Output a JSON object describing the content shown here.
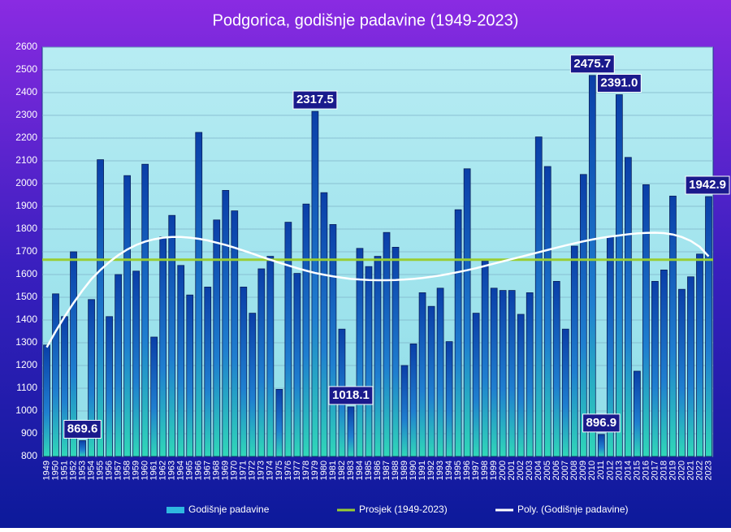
{
  "chart_data": {
    "type": "bar",
    "title": "Podgorica, godišnje padavine (1949-2023)",
    "categories": [
      "1949",
      "1950",
      "1951",
      "1952",
      "1953",
      "1954",
      "1955",
      "1956",
      "1957",
      "1958",
      "1959",
      "1960",
      "1961",
      "1962",
      "1963",
      "1964",
      "1965",
      "1966",
      "1967",
      "1968",
      "1969",
      "1970",
      "1971",
      "1972",
      "1973",
      "1974",
      "1975",
      "1976",
      "1977",
      "1978",
      "1979",
      "1980",
      "1981",
      "1982",
      "1983",
      "1984",
      "1985",
      "1986",
      "1987",
      "1988",
      "1989",
      "1990",
      "1991",
      "1992",
      "1993",
      "1994",
      "1995",
      "1996",
      "1997",
      "1998",
      "1999",
      "2000",
      "2001",
      "2002",
      "2003",
      "2004",
      "2005",
      "2006",
      "2007",
      "2008",
      "2009",
      "2010",
      "2011",
      "2012",
      "2013",
      "2014",
      "2015",
      "2016",
      "2017",
      "2018",
      "2019",
      "2020",
      "2021",
      "2022",
      "2023"
    ],
    "series": [
      {
        "name": "Godišnje padavine",
        "color": "#1f6fd0",
        "values": [
          1290,
          1515,
          1415,
          1700,
          869.6,
          1490,
          2105,
          1415,
          1600,
          2035,
          1615,
          2085,
          1325,
          1765,
          1860,
          1640,
          1510,
          2225,
          1545,
          1840,
          1970,
          1880,
          1545,
          1430,
          1625,
          1680,
          1095,
          1830,
          1605,
          1910,
          2317.5,
          1960,
          1820,
          1360,
          1018.1,
          1715,
          1635,
          1680,
          1785,
          1720,
          1200,
          1295,
          1520,
          1460,
          1540,
          1305,
          1885,
          2065,
          1430,
          1660,
          1540,
          1530,
          1530,
          1425,
          1520,
          2205,
          2075,
          1570,
          1360,
          1725,
          2040,
          2475.7,
          896.9,
          1765,
          2391,
          2115,
          1175,
          1995,
          1570,
          1620,
          1945,
          1535,
          1590,
          1690,
          1942.9
        ],
        "value_labels": [
          null,
          null,
          null,
          null,
          "869.6",
          null,
          null,
          null,
          null,
          null,
          null,
          null,
          null,
          null,
          null,
          null,
          null,
          null,
          null,
          null,
          null,
          null,
          null,
          null,
          null,
          null,
          null,
          null,
          null,
          null,
          "2317.5",
          null,
          null,
          null,
          "1018.1",
          null,
          null,
          null,
          null,
          null,
          null,
          null,
          null,
          null,
          null,
          null,
          null,
          null,
          null,
          null,
          null,
          null,
          null,
          null,
          null,
          null,
          null,
          null,
          null,
          null,
          null,
          "2475.7",
          "896.9",
          null,
          "2391.0",
          null,
          null,
          null,
          null,
          null,
          null,
          null,
          null,
          null,
          "1942.9"
        ]
      },
      {
        "name": "Prosjek (1949-2023)",
        "type": "hline",
        "color": "#9acd32",
        "value": 1665
      },
      {
        "name": "Poly. (Godišnje padavine)",
        "type": "line",
        "color": "#ffffff",
        "values": [
          1280,
          1350,
          1415,
          1475,
          1530,
          1580,
          1620,
          1655,
          1685,
          1710,
          1730,
          1745,
          1755,
          1762,
          1765,
          1765,
          1762,
          1757,
          1750,
          1740,
          1730,
          1718,
          1705,
          1692,
          1678,
          1665,
          1652,
          1640,
          1628,
          1617,
          1607,
          1599,
          1592,
          1586,
          1581,
          1578,
          1576,
          1575,
          1575,
          1576,
          1578,
          1581,
          1585,
          1590,
          1596,
          1603,
          1611,
          1619,
          1628,
          1638,
          1648,
          1658,
          1668,
          1678,
          1688,
          1698,
          1708,
          1718,
          1728,
          1737,
          1746,
          1754,
          1761,
          1767,
          1772,
          1777,
          1781,
          1783,
          1784,
          1782,
          1776,
          1765,
          1748,
          1722,
          1680
        ]
      }
    ],
    "ylim": [
      800,
      2600
    ],
    "yticks": [
      800,
      900,
      1000,
      1100,
      1200,
      1300,
      1400,
      1500,
      1600,
      1700,
      1800,
      1900,
      2000,
      2100,
      2200,
      2300,
      2400,
      2500,
      2600
    ],
    "grid": true
  }
}
